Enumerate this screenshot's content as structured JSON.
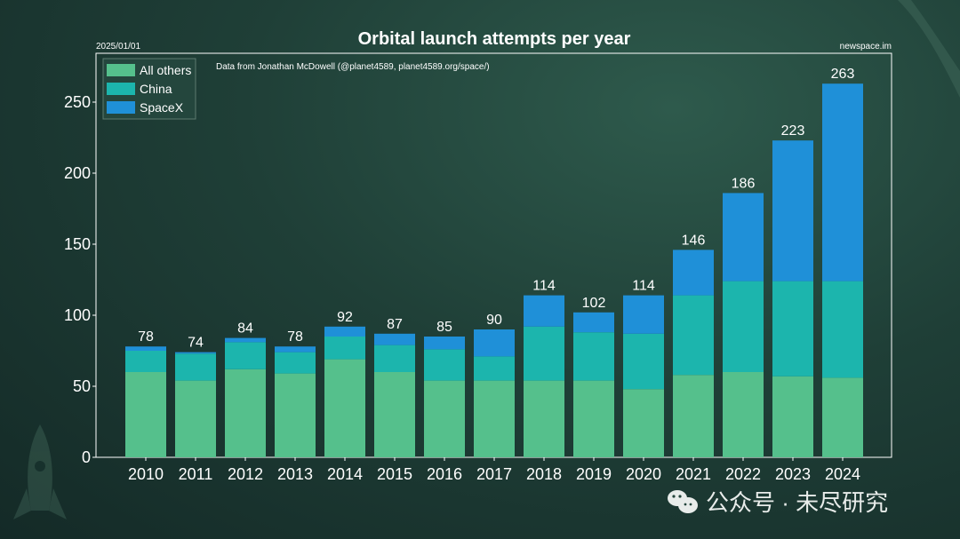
{
  "chart_data": {
    "type": "bar",
    "stacked": true,
    "title": "Orbital launch attempts per year",
    "date_label": "2025/01/01",
    "source_label": "newspace.im",
    "subtitle": "Data from Jonathan McDowell (@planet4589, planet4589.org/space/)",
    "categories": [
      "2010",
      "2011",
      "2012",
      "2013",
      "2014",
      "2015",
      "2016",
      "2017",
      "2018",
      "2019",
      "2020",
      "2021",
      "2022",
      "2023",
      "2024"
    ],
    "series": [
      {
        "name": "All others",
        "color": "#55c08c",
        "values": [
          60,
          54,
          62,
          59,
          69,
          60,
          54,
          54,
          54,
          54,
          48,
          58,
          60,
          57,
          56
        ]
      },
      {
        "name": "China",
        "color": "#1cb5ad",
        "values": [
          15,
          19,
          19,
          15,
          16,
          19,
          22,
          17,
          38,
          34,
          39,
          56,
          64,
          67,
          68
        ]
      },
      {
        "name": "SpaceX",
        "color": "#1f90d8",
        "values": [
          3,
          1,
          3,
          4,
          7,
          8,
          9,
          19,
          22,
          14,
          27,
          32,
          62,
          99,
          139
        ]
      }
    ],
    "totals": [
      78,
      74,
      84,
      78,
      92,
      87,
      85,
      90,
      114,
      102,
      114,
      146,
      186,
      223,
      263
    ],
    "ylim": [
      0,
      275
    ],
    "yticks": [
      0,
      50,
      100,
      150,
      200,
      250
    ],
    "legend_position": "top-left",
    "grid": false
  },
  "watermark": {
    "text": "公众号 · 未尽研究",
    "icon": "wechat-icon"
  }
}
